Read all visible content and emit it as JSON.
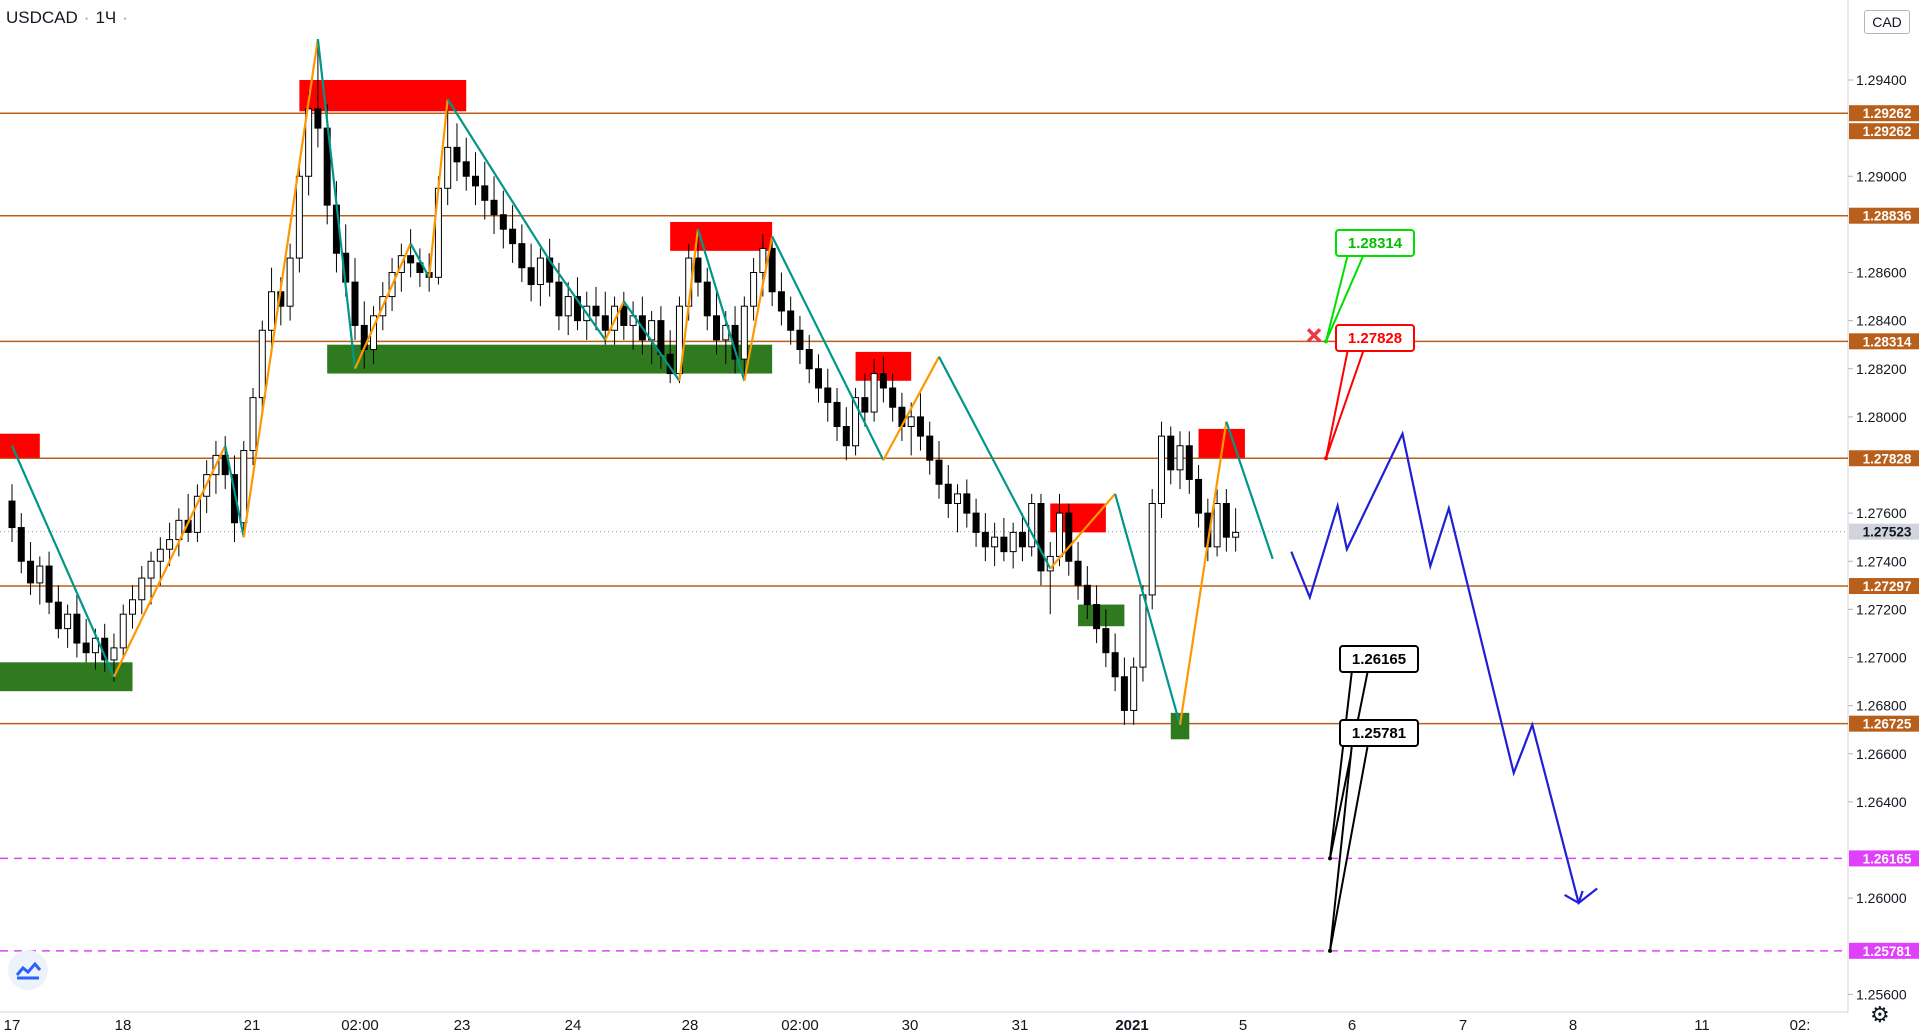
{
  "header": {
    "symbol": "USDCAD",
    "interval": "1Ч",
    "currency": "CAD"
  },
  "icons": {
    "logo": "tradingview-logo-icon",
    "settings": "gear-icon",
    "cancel": "red-x-icon"
  },
  "colors": {
    "bull": "#000000",
    "bear": "#000000",
    "level": "#b8601b",
    "level_label": "#b8601b",
    "target": "#e040fb",
    "zig_up": "#ff9800",
    "zig_down": "#009688",
    "supply": "#ff0000",
    "demand": "#2f7a1e",
    "forecast": "#1f1fd6",
    "stop_label": "#ff0000",
    "entry_label": "#00e000",
    "target_label": "#000000"
  },
  "chart_data": {
    "type": "candlestick",
    "title": "",
    "price_axis": {
      "min": 1.2546,
      "max": 1.2972,
      "ticks": [
        1.294,
        1.29,
        1.286,
        1.284,
        1.282,
        1.28,
        1.276,
        1.274,
        1.272,
        1.27,
        1.268,
        1.266,
        1.264,
        1.26,
        1.256
      ]
    },
    "time_axis": {
      "labels": [
        "17",
        "18",
        "21",
        "02:00",
        "23",
        "24",
        "28",
        "02:00",
        "30",
        "31",
        "2021",
        "5",
        "6",
        "7",
        "8",
        "11",
        "02:"
      ]
    },
    "current_price": 1.27523,
    "levels": [
      {
        "name": "resistance-1",
        "price": 1.29262,
        "label": "1.29262"
      },
      {
        "name": "resistance-2",
        "price": 1.28836,
        "label": "1.28836"
      },
      {
        "name": "entry",
        "price": 1.28314,
        "label": "1.28314"
      },
      {
        "name": "stop",
        "price": 1.27828,
        "label": "1.27828"
      },
      {
        "name": "support-1",
        "price": 1.27297,
        "label": "1.27297"
      },
      {
        "name": "support-2",
        "price": 1.26725,
        "label": "1.26725"
      }
    ],
    "targets": [
      {
        "name": "target-1",
        "price": 1.26165,
        "label": "1.26165"
      },
      {
        "name": "target-2",
        "price": 1.25781,
        "label": "1.25781"
      }
    ],
    "extra_price_labels": [
      "1.29262",
      "1.27523"
    ],
    "callouts": [
      {
        "name": "entry-callout",
        "text": "1.28314",
        "kind": "entry"
      },
      {
        "name": "stop-callout",
        "text": "1.27828",
        "kind": "stop"
      },
      {
        "name": "target-1-callout",
        "text": "1.26165",
        "kind": "target"
      },
      {
        "name": "target-2-callout",
        "text": "1.25781",
        "kind": "target"
      }
    ],
    "zigzag_pivots": [
      [
        0,
        1.2788
      ],
      [
        11,
        1.2692
      ],
      [
        23,
        1.2788
      ],
      [
        25,
        1.275
      ],
      [
        33,
        1.2957
      ],
      [
        37,
        1.282
      ],
      [
        43,
        1.2872
      ],
      [
        45,
        1.2858
      ],
      [
        47,
        1.2932
      ],
      [
        58,
        1.2865
      ],
      [
        64,
        1.2832
      ],
      [
        66,
        1.2848
      ],
      [
        72,
        1.2815
      ],
      [
        74,
        1.2878
      ],
      [
        79,
        1.2815
      ],
      [
        82,
        1.2875
      ],
      [
        94,
        1.2782
      ],
      [
        100,
        1.2825
      ],
      [
        112,
        1.2737
      ],
      [
        119,
        1.2768
      ],
      [
        126,
        1.2672
      ],
      [
        131,
        1.2798
      ],
      [
        136,
        1.2741
      ]
    ],
    "supply_zones": [
      {
        "from_bar": 31,
        "to_bar": 49,
        "top": 1.294,
        "bottom": 1.2927
      },
      {
        "from_bar": 71,
        "to_bar": 82,
        "top": 1.2881,
        "bottom": 1.2869
      },
      {
        "from_bar": 91,
        "to_bar": 97,
        "top": 1.2827,
        "bottom": 1.2815
      },
      {
        "from_bar": 112,
        "to_bar": 118,
        "top": 1.2764,
        "bottom": 1.2752
      },
      {
        "from_bar": 128,
        "to_bar": 133,
        "top": 1.2795,
        "bottom": 1.2783
      },
      {
        "from_bar": -2,
        "to_bar": 3,
        "top": 1.2793,
        "bottom": 1.2783
      }
    ],
    "demand_zones": [
      {
        "from_bar": 34,
        "to_bar": 82,
        "top": 1.283,
        "bottom": 1.2818
      },
      {
        "from_bar": 115,
        "to_bar": 120,
        "top": 1.2722,
        "bottom": 1.2713
      },
      {
        "from_bar": 125,
        "to_bar": 127,
        "top": 1.2677,
        "bottom": 1.2666
      },
      {
        "from_bar": -2,
        "to_bar": 13,
        "top": 1.2698,
        "bottom": 1.2686
      }
    ],
    "forecast_path": [
      [
        138,
        1.2744
      ],
      [
        140,
        1.2725
      ],
      [
        143,
        1.2763
      ],
      [
        144,
        1.2745
      ],
      [
        150,
        1.2793
      ],
      [
        153,
        1.2738
      ],
      [
        155,
        1.2762
      ],
      [
        162,
        1.2652
      ],
      [
        164,
        1.2672
      ],
      [
        169,
        1.2598
      ],
      [
        171,
        1.2604
      ]
    ],
    "candles": [
      [
        1.2765,
        1.2772,
        1.2748,
        1.2754
      ],
      [
        1.2754,
        1.276,
        1.2735,
        1.274
      ],
      [
        1.274,
        1.2748,
        1.2726,
        1.2731
      ],
      [
        1.2731,
        1.2742,
        1.2722,
        1.2738
      ],
      [
        1.2738,
        1.2744,
        1.2718,
        1.2723
      ],
      [
        1.2723,
        1.273,
        1.2708,
        1.2712
      ],
      [
        1.2712,
        1.2722,
        1.2704,
        1.2718
      ],
      [
        1.2718,
        1.2726,
        1.27,
        1.2706
      ],
      [
        1.2706,
        1.2716,
        1.2698,
        1.2702
      ],
      [
        1.2702,
        1.2712,
        1.2695,
        1.2708
      ],
      [
        1.2708,
        1.2714,
        1.2694,
        1.2699
      ],
      [
        1.2699,
        1.271,
        1.269,
        1.2704
      ],
      [
        1.2704,
        1.2722,
        1.27,
        1.2718
      ],
      [
        1.2718,
        1.273,
        1.2712,
        1.2724
      ],
      [
        1.2724,
        1.2738,
        1.2718,
        1.2733
      ],
      [
        1.2733,
        1.2744,
        1.2722,
        1.274
      ],
      [
        1.274,
        1.275,
        1.273,
        1.2745
      ],
      [
        1.2745,
        1.2756,
        1.2738,
        1.2749
      ],
      [
        1.2749,
        1.2762,
        1.2742,
        1.2757
      ],
      [
        1.2757,
        1.2768,
        1.2748,
        1.2752
      ],
      [
        1.2752,
        1.2772,
        1.2748,
        1.2767
      ],
      [
        1.2767,
        1.2782,
        1.276,
        1.2776
      ],
      [
        1.2776,
        1.279,
        1.2768,
        1.2784
      ],
      [
        1.2784,
        1.2792,
        1.277,
        1.2776
      ],
      [
        1.2776,
        1.2784,
        1.2748,
        1.2756
      ],
      [
        1.2756,
        1.279,
        1.275,
        1.2786
      ],
      [
        1.2786,
        1.2812,
        1.278,
        1.2808
      ],
      [
        1.2808,
        1.284,
        1.2802,
        1.2836
      ],
      [
        1.2836,
        1.2862,
        1.2826,
        1.2852
      ],
      [
        1.2852,
        1.2858,
        1.2838,
        1.2846
      ],
      [
        1.2846,
        1.2872,
        1.284,
        1.2866
      ],
      [
        1.2866,
        1.2905,
        1.286,
        1.29
      ],
      [
        1.29,
        1.2935,
        1.2892,
        1.2928
      ],
      [
        1.2928,
        1.2957,
        1.2912,
        1.292
      ],
      [
        1.292,
        1.293,
        1.288,
        1.2888
      ],
      [
        1.2888,
        1.2898,
        1.286,
        1.2868
      ],
      [
        1.2868,
        1.288,
        1.285,
        1.2856
      ],
      [
        1.2856,
        1.2866,
        1.2832,
        1.2838
      ],
      [
        1.2838,
        1.2848,
        1.282,
        1.2828
      ],
      [
        1.2828,
        1.2846,
        1.2822,
        1.2842
      ],
      [
        1.2842,
        1.2856,
        1.2836,
        1.285
      ],
      [
        1.285,
        1.2866,
        1.2844,
        1.286
      ],
      [
        1.286,
        1.2872,
        1.2852,
        1.2867
      ],
      [
        1.2867,
        1.2878,
        1.2858,
        1.2864
      ],
      [
        1.2864,
        1.287,
        1.2854,
        1.286
      ],
      [
        1.286,
        1.2868,
        1.2852,
        1.2858
      ],
      [
        1.2858,
        1.29,
        1.2855,
        1.2895
      ],
      [
        1.2895,
        1.2932,
        1.2888,
        1.2912
      ],
      [
        1.2912,
        1.2922,
        1.2898,
        1.2906
      ],
      [
        1.2906,
        1.2916,
        1.2894,
        1.29
      ],
      [
        1.29,
        1.291,
        1.2888,
        1.2896
      ],
      [
        1.2896,
        1.2906,
        1.2882,
        1.289
      ],
      [
        1.289,
        1.29,
        1.2876,
        1.2884
      ],
      [
        1.2884,
        1.2894,
        1.287,
        1.2878
      ],
      [
        1.2878,
        1.2888,
        1.2864,
        1.2872
      ],
      [
        1.2872,
        1.288,
        1.2856,
        1.2862
      ],
      [
        1.2862,
        1.2872,
        1.2848,
        1.2855
      ],
      [
        1.2855,
        1.287,
        1.2846,
        1.2866
      ],
      [
        1.2866,
        1.2874,
        1.285,
        1.2856
      ],
      [
        1.2856,
        1.2864,
        1.2836,
        1.2842
      ],
      [
        1.2842,
        1.2856,
        1.2834,
        1.285
      ],
      [
        1.285,
        1.2858,
        1.2836,
        1.284
      ],
      [
        1.284,
        1.2852,
        1.2832,
        1.2846
      ],
      [
        1.2846,
        1.2854,
        1.2836,
        1.2842
      ],
      [
        1.2842,
        1.2852,
        1.283,
        1.2836
      ],
      [
        1.2836,
        1.285,
        1.283,
        1.2846
      ],
      [
        1.2846,
        1.2852,
        1.2832,
        1.2838
      ],
      [
        1.2838,
        1.2848,
        1.2828,
        1.2842
      ],
      [
        1.2842,
        1.285,
        1.2826,
        1.2832
      ],
      [
        1.2832,
        1.2844,
        1.2822,
        1.284
      ],
      [
        1.284,
        1.2846,
        1.282,
        1.2826
      ],
      [
        1.2826,
        1.2836,
        1.2814,
        1.2818
      ],
      [
        1.2818,
        1.285,
        1.2814,
        1.2846
      ],
      [
        1.2846,
        1.2872,
        1.284,
        1.2866
      ],
      [
        1.2866,
        1.2878,
        1.285,
        1.2856
      ],
      [
        1.2856,
        1.2862,
        1.2836,
        1.2842
      ],
      [
        1.2842,
        1.2852,
        1.2826,
        1.2832
      ],
      [
        1.2832,
        1.2844,
        1.2822,
        1.2838
      ],
      [
        1.2838,
        1.2846,
        1.2818,
        1.2824
      ],
      [
        1.2824,
        1.285,
        1.2815,
        1.2846
      ],
      [
        1.2846,
        1.2866,
        1.284,
        1.286
      ],
      [
        1.286,
        1.2876,
        1.285,
        1.287
      ],
      [
        1.287,
        1.2875,
        1.2846,
        1.2852
      ],
      [
        1.2852,
        1.286,
        1.2838,
        1.2844
      ],
      [
        1.2844,
        1.285,
        1.283,
        1.2836
      ],
      [
        1.2836,
        1.2842,
        1.2822,
        1.2828
      ],
      [
        1.2828,
        1.2834,
        1.2814,
        1.282
      ],
      [
        1.282,
        1.2826,
        1.2806,
        1.2812
      ],
      [
        1.2812,
        1.282,
        1.2798,
        1.2806
      ],
      [
        1.2806,
        1.2812,
        1.279,
        1.2796
      ],
      [
        1.2796,
        1.2804,
        1.2782,
        1.2788
      ],
      [
        1.2788,
        1.2812,
        1.2784,
        1.2808
      ],
      [
        1.2808,
        1.2818,
        1.2796,
        1.2802
      ],
      [
        1.2802,
        1.2824,
        1.2798,
        1.2818
      ],
      [
        1.2818,
        1.2825,
        1.2806,
        1.2812
      ],
      [
        1.2812,
        1.2818,
        1.2798,
        1.2804
      ],
      [
        1.2804,
        1.281,
        1.279,
        1.2796
      ],
      [
        1.2796,
        1.2806,
        1.2784,
        1.28
      ],
      [
        1.28,
        1.281,
        1.2786,
        1.2792
      ],
      [
        1.2792,
        1.2798,
        1.2776,
        1.2782
      ],
      [
        1.2782,
        1.279,
        1.2766,
        1.2772
      ],
      [
        1.2772,
        1.278,
        1.2758,
        1.2764
      ],
      [
        1.2764,
        1.2772,
        1.2752,
        1.2768
      ],
      [
        1.2768,
        1.2774,
        1.2754,
        1.276
      ],
      [
        1.276,
        1.2766,
        1.2746,
        1.2752
      ],
      [
        1.2752,
        1.276,
        1.274,
        1.2746
      ],
      [
        1.2746,
        1.2756,
        1.2738,
        1.275
      ],
      [
        1.275,
        1.2758,
        1.274,
        1.2744
      ],
      [
        1.2744,
        1.2756,
        1.2737,
        1.2752
      ],
      [
        1.2752,
        1.276,
        1.274,
        1.2746
      ],
      [
        1.2746,
        1.2768,
        1.2742,
        1.2764
      ],
      [
        1.2764,
        1.2768,
        1.273,
        1.2736
      ],
      [
        1.2736,
        1.2748,
        1.2718,
        1.2742
      ],
      [
        1.2742,
        1.2768,
        1.2738,
        1.276
      ],
      [
        1.276,
        1.2764,
        1.2734,
        1.274
      ],
      [
        1.274,
        1.2748,
        1.2724,
        1.273
      ],
      [
        1.273,
        1.2738,
        1.2716,
        1.2722
      ],
      [
        1.2722,
        1.273,
        1.2706,
        1.2712
      ],
      [
        1.2712,
        1.272,
        1.2696,
        1.2702
      ],
      [
        1.2702,
        1.271,
        1.2686,
        1.2692
      ],
      [
        1.2692,
        1.27,
        1.2672,
        1.2678
      ],
      [
        1.2678,
        1.27,
        1.2672,
        1.2696
      ],
      [
        1.2696,
        1.273,
        1.269,
        1.2726
      ],
      [
        1.2726,
        1.277,
        1.272,
        1.2764
      ],
      [
        1.2764,
        1.2798,
        1.2758,
        1.2792
      ],
      [
        1.2792,
        1.2796,
        1.2772,
        1.2778
      ],
      [
        1.2778,
        1.2794,
        1.277,
        1.2788
      ],
      [
        1.2788,
        1.2794,
        1.2768,
        1.2774
      ],
      [
        1.2774,
        1.278,
        1.2754,
        1.276
      ],
      [
        1.276,
        1.2766,
        1.274,
        1.2746
      ],
      [
        1.2746,
        1.277,
        1.2742,
        1.2764
      ],
      [
        1.2764,
        1.277,
        1.2744,
        1.275
      ],
      [
        1.275,
        1.2762,
        1.2744,
        1.2752
      ]
    ]
  }
}
